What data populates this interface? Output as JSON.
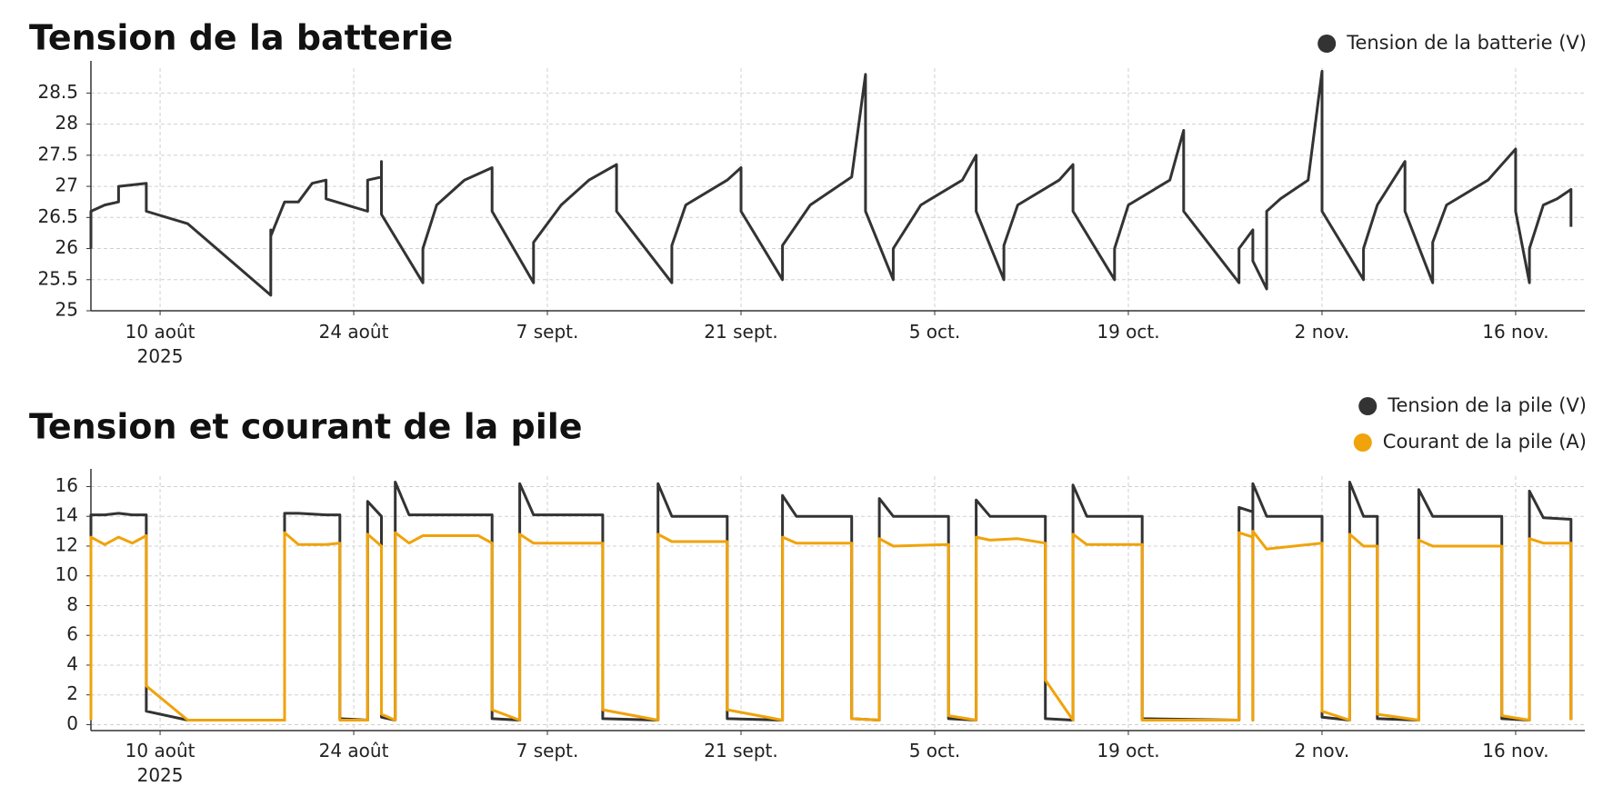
{
  "chart_data": [
    {
      "type": "line",
      "title": "Tension de la batterie",
      "x": [
        "2025-08-05",
        "2025-08-05",
        "2025-08-06",
        "2025-08-07",
        "2025-08-07",
        "2025-08-09",
        "2025-08-09",
        "2025-08-12",
        "2025-08-18",
        "2025-08-18",
        "2025-08-18",
        "2025-08-19",
        "2025-08-20",
        "2025-08-21",
        "2025-08-22",
        "2025-08-22",
        "2025-08-25",
        "2025-08-25",
        "2025-08-26",
        "2025-08-26",
        "2025-08-26",
        "2025-08-29",
        "2025-08-29",
        "2025-08-30",
        "2025-09-01",
        "2025-09-03",
        "2025-09-03",
        "2025-09-06",
        "2025-09-06",
        "2025-09-08",
        "2025-09-10",
        "2025-09-12",
        "2025-09-12",
        "2025-09-16",
        "2025-09-16",
        "2025-09-17",
        "2025-09-20",
        "2025-09-21",
        "2025-09-21",
        "2025-09-24",
        "2025-09-24",
        "2025-09-26",
        "2025-09-29",
        "2025-09-30",
        "2025-09-30",
        "2025-10-02",
        "2025-10-02",
        "2025-10-04",
        "2025-10-07",
        "2025-10-08",
        "2025-10-08",
        "2025-10-10",
        "2025-10-10",
        "2025-10-11",
        "2025-10-14",
        "2025-10-15",
        "2025-10-15",
        "2025-10-18",
        "2025-10-18",
        "2025-10-19",
        "2025-10-22",
        "2025-10-23",
        "2025-10-23",
        "2025-10-27",
        "2025-10-27",
        "2025-10-28",
        "2025-10-28",
        "2025-10-29",
        "2025-10-29",
        "2025-10-30",
        "2025-11-01",
        "2025-11-02",
        "2025-11-02",
        "2025-11-05",
        "2025-11-05",
        "2025-11-06",
        "2025-11-08",
        "2025-11-08",
        "2025-11-10",
        "2025-11-10",
        "2025-11-11",
        "2025-11-14",
        "2025-11-16",
        "2025-11-16",
        "2025-11-17",
        "2025-11-17",
        "2025-11-18",
        "2025-11-19",
        "2025-11-20",
        "2025-11-20"
      ],
      "series": [
        {
          "name": "Tension de la batterie (V)",
          "color": "#333333",
          "values": [
            26.0,
            26.6,
            26.7,
            26.75,
            27.0,
            27.05,
            26.6,
            26.4,
            25.25,
            26.3,
            26.2,
            26.75,
            26.75,
            27.05,
            27.1,
            26.8,
            26.6,
            27.1,
            27.15,
            27.4,
            26.55,
            25.45,
            26.0,
            26.7,
            27.1,
            27.3,
            26.6,
            25.45,
            26.1,
            26.7,
            27.1,
            27.35,
            26.6,
            25.45,
            26.05,
            26.7,
            27.1,
            27.3,
            26.6,
            25.5,
            26.05,
            26.7,
            27.15,
            28.8,
            26.6,
            25.5,
            26.0,
            26.7,
            27.1,
            27.5,
            26.6,
            25.5,
            26.05,
            26.7,
            27.1,
            27.35,
            26.6,
            25.5,
            26.0,
            26.7,
            27.1,
            27.9,
            26.6,
            25.45,
            26.0,
            26.3,
            25.8,
            25.35,
            26.6,
            26.8,
            27.1,
            28.85,
            26.6,
            25.5,
            26.0,
            26.7,
            27.4,
            26.6,
            25.45,
            26.1,
            26.7,
            27.1,
            27.6,
            26.6,
            25.45,
            26.0,
            26.7,
            26.8,
            26.95,
            26.35
          ]
        }
      ],
      "xlim": [
        "2025-08-05",
        "2025-11-21"
      ],
      "xticks": [
        {
          "value": "2025-08-10",
          "label": "10 août 2025"
        },
        {
          "value": "2025-08-24",
          "label": "24 août"
        },
        {
          "value": "2025-09-07",
          "label": "7 sept."
        },
        {
          "value": "2025-09-21",
          "label": "21 sept."
        },
        {
          "value": "2025-10-05",
          "label": "5 oct."
        },
        {
          "value": "2025-10-19",
          "label": "19 oct."
        },
        {
          "value": "2025-11-02",
          "label": "2 nov."
        },
        {
          "value": "2025-11-16",
          "label": "16 nov."
        }
      ],
      "ylim": [
        25,
        28.9
      ],
      "yticks": [
        25,
        25.5,
        26,
        26.5,
        27,
        27.5,
        28,
        28.5
      ],
      "grid": true
    },
    {
      "type": "line",
      "title": "Tension et courant de la pile",
      "x": [
        "2025-08-05",
        "2025-08-05",
        "2025-08-06",
        "2025-08-07",
        "2025-08-08",
        "2025-08-09",
        "2025-08-09",
        "2025-08-12",
        "2025-08-19",
        "2025-08-19",
        "2025-08-20",
        "2025-08-22",
        "2025-08-23",
        "2025-08-23",
        "2025-08-25",
        "2025-08-25",
        "2025-08-26",
        "2025-08-26",
        "2025-08-27",
        "2025-08-27",
        "2025-08-28",
        "2025-08-29",
        "2025-09-02",
        "2025-09-03",
        "2025-09-03",
        "2025-09-05",
        "2025-09-05",
        "2025-09-06",
        "2025-09-08",
        "2025-09-11",
        "2025-09-11",
        "2025-09-15",
        "2025-09-15",
        "2025-09-16",
        "2025-09-20",
        "2025-09-20",
        "2025-09-24",
        "2025-09-24",
        "2025-09-25",
        "2025-09-29",
        "2025-09-29",
        "2025-10-01",
        "2025-10-01",
        "2025-10-02",
        "2025-10-06",
        "2025-10-06",
        "2025-10-08",
        "2025-10-08",
        "2025-10-09",
        "2025-10-11",
        "2025-10-13",
        "2025-10-13",
        "2025-10-15",
        "2025-10-15",
        "2025-10-16",
        "2025-10-20",
        "2025-10-20",
        "2025-10-27",
        "2025-10-27",
        "2025-10-28",
        "2025-10-28",
        "2025-10-28",
        "2025-10-29",
        "2025-11-02",
        "2025-11-02",
        "2025-11-04",
        "2025-11-04",
        "2025-11-05",
        "2025-11-06",
        "2025-11-06",
        "2025-11-09",
        "2025-11-09",
        "2025-11-10",
        "2025-11-15",
        "2025-11-15",
        "2025-11-17",
        "2025-11-17",
        "2025-11-18",
        "2025-11-20",
        "2025-11-20"
      ],
      "series": [
        {
          "name": "Tension de la pile (V)",
          "color": "#333333",
          "values": [
            0.5,
            14.1,
            14.1,
            14.2,
            14.1,
            14.1,
            0.9,
            0.3,
            0.3,
            14.2,
            14.2,
            14.1,
            14.1,
            0.4,
            0.3,
            15.0,
            14.0,
            0.5,
            0.3,
            16.3,
            14.1,
            14.1,
            14.1,
            14.1,
            0.4,
            0.3,
            16.2,
            14.1,
            14.1,
            14.1,
            0.4,
            0.3,
            16.2,
            14.0,
            14.0,
            0.4,
            0.3,
            15.4,
            14.0,
            14.0,
            0.4,
            0.3,
            15.2,
            14.0,
            14.0,
            0.4,
            0.3,
            15.1,
            14.0,
            14.0,
            14.0,
            0.4,
            0.3,
            16.1,
            14.0,
            14.0,
            0.4,
            0.3,
            14.6,
            14.3,
            0.3,
            16.2,
            14.0,
            14.0,
            0.5,
            0.3,
            16.3,
            14.0,
            14.0,
            0.4,
            0.3,
            15.8,
            14.0,
            14.0,
            0.4,
            0.3,
            15.7,
            13.9,
            13.8,
            0.3
          ]
        },
        {
          "name": "Courant de la pile (A)",
          "color": "#f0a30a",
          "values": [
            0.3,
            12.6,
            12.1,
            12.6,
            12.2,
            12.7,
            2.6,
            0.3,
            0.3,
            12.9,
            12.1,
            12.1,
            12.2,
            0.3,
            0.3,
            12.8,
            12.0,
            0.7,
            0.3,
            12.9,
            12.2,
            12.7,
            12.7,
            12.2,
            1.0,
            0.3,
            12.8,
            12.2,
            12.2,
            12.2,
            1.0,
            0.3,
            12.8,
            12.3,
            12.3,
            1.0,
            0.3,
            12.6,
            12.2,
            12.2,
            0.4,
            0.3,
            12.5,
            12.0,
            12.1,
            0.6,
            0.3,
            12.6,
            12.4,
            12.5,
            12.2,
            3.0,
            0.3,
            12.8,
            12.1,
            12.1,
            0.3,
            0.3,
            12.9,
            12.6,
            0.3,
            13.0,
            11.8,
            12.2,
            0.9,
            0.3,
            12.8,
            12.0,
            12.0,
            0.7,
            0.3,
            12.4,
            12.0,
            12.0,
            0.6,
            0.3,
            12.5,
            12.2,
            12.2,
            0.3
          ]
        }
      ],
      "xlim": [
        "2025-08-05",
        "2025-11-21"
      ],
      "xticks": [
        {
          "value": "2025-08-10",
          "label": "10 août 2025"
        },
        {
          "value": "2025-08-24",
          "label": "24 août"
        },
        {
          "value": "2025-09-07",
          "label": "7 sept."
        },
        {
          "value": "2025-09-21",
          "label": "21 sept."
        },
        {
          "value": "2025-10-05",
          "label": "5 oct."
        },
        {
          "value": "2025-10-19",
          "label": "19 oct."
        },
        {
          "value": "2025-11-02",
          "label": "2 nov."
        },
        {
          "value": "2025-11-16",
          "label": "16 nov."
        }
      ],
      "ylim": [
        -0.4,
        16.7
      ],
      "yticks": [
        0,
        2,
        4,
        6,
        8,
        10,
        12,
        14,
        16
      ],
      "grid": true
    }
  ]
}
